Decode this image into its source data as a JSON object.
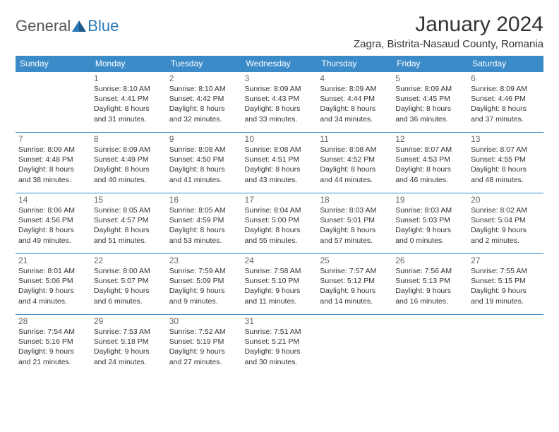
{
  "logo": {
    "general": "General",
    "blue": "Blue"
  },
  "title": "January 2024",
  "location": "Zagra, Bistrita-Nasaud County, Romania",
  "colors": {
    "header_bg": "#3b8bc9",
    "header_text": "#ffffff",
    "border": "#3b8bc9",
    "logo_blue": "#2a7ab8",
    "text": "#333333"
  },
  "day_headers": [
    "Sunday",
    "Monday",
    "Tuesday",
    "Wednesday",
    "Thursday",
    "Friday",
    "Saturday"
  ],
  "weeks": [
    [
      null,
      {
        "n": "1",
        "sr": "Sunrise: 8:10 AM",
        "ss": "Sunset: 4:41 PM",
        "d1": "Daylight: 8 hours",
        "d2": "and 31 minutes."
      },
      {
        "n": "2",
        "sr": "Sunrise: 8:10 AM",
        "ss": "Sunset: 4:42 PM",
        "d1": "Daylight: 8 hours",
        "d2": "and 32 minutes."
      },
      {
        "n": "3",
        "sr": "Sunrise: 8:09 AM",
        "ss": "Sunset: 4:43 PM",
        "d1": "Daylight: 8 hours",
        "d2": "and 33 minutes."
      },
      {
        "n": "4",
        "sr": "Sunrise: 8:09 AM",
        "ss": "Sunset: 4:44 PM",
        "d1": "Daylight: 8 hours",
        "d2": "and 34 minutes."
      },
      {
        "n": "5",
        "sr": "Sunrise: 8:09 AM",
        "ss": "Sunset: 4:45 PM",
        "d1": "Daylight: 8 hours",
        "d2": "and 36 minutes."
      },
      {
        "n": "6",
        "sr": "Sunrise: 8:09 AM",
        "ss": "Sunset: 4:46 PM",
        "d1": "Daylight: 8 hours",
        "d2": "and 37 minutes."
      }
    ],
    [
      {
        "n": "7",
        "sr": "Sunrise: 8:09 AM",
        "ss": "Sunset: 4:48 PM",
        "d1": "Daylight: 8 hours",
        "d2": "and 38 minutes."
      },
      {
        "n": "8",
        "sr": "Sunrise: 8:09 AM",
        "ss": "Sunset: 4:49 PM",
        "d1": "Daylight: 8 hours",
        "d2": "and 40 minutes."
      },
      {
        "n": "9",
        "sr": "Sunrise: 8:08 AM",
        "ss": "Sunset: 4:50 PM",
        "d1": "Daylight: 8 hours",
        "d2": "and 41 minutes."
      },
      {
        "n": "10",
        "sr": "Sunrise: 8:08 AM",
        "ss": "Sunset: 4:51 PM",
        "d1": "Daylight: 8 hours",
        "d2": "and 43 minutes."
      },
      {
        "n": "11",
        "sr": "Sunrise: 8:08 AM",
        "ss": "Sunset: 4:52 PM",
        "d1": "Daylight: 8 hours",
        "d2": "and 44 minutes."
      },
      {
        "n": "12",
        "sr": "Sunrise: 8:07 AM",
        "ss": "Sunset: 4:53 PM",
        "d1": "Daylight: 8 hours",
        "d2": "and 46 minutes."
      },
      {
        "n": "13",
        "sr": "Sunrise: 8:07 AM",
        "ss": "Sunset: 4:55 PM",
        "d1": "Daylight: 8 hours",
        "d2": "and 48 minutes."
      }
    ],
    [
      {
        "n": "14",
        "sr": "Sunrise: 8:06 AM",
        "ss": "Sunset: 4:56 PM",
        "d1": "Daylight: 8 hours",
        "d2": "and 49 minutes."
      },
      {
        "n": "15",
        "sr": "Sunrise: 8:05 AM",
        "ss": "Sunset: 4:57 PM",
        "d1": "Daylight: 8 hours",
        "d2": "and 51 minutes."
      },
      {
        "n": "16",
        "sr": "Sunrise: 8:05 AM",
        "ss": "Sunset: 4:59 PM",
        "d1": "Daylight: 8 hours",
        "d2": "and 53 minutes."
      },
      {
        "n": "17",
        "sr": "Sunrise: 8:04 AM",
        "ss": "Sunset: 5:00 PM",
        "d1": "Daylight: 8 hours",
        "d2": "and 55 minutes."
      },
      {
        "n": "18",
        "sr": "Sunrise: 8:03 AM",
        "ss": "Sunset: 5:01 PM",
        "d1": "Daylight: 8 hours",
        "d2": "and 57 minutes."
      },
      {
        "n": "19",
        "sr": "Sunrise: 8:03 AM",
        "ss": "Sunset: 5:03 PM",
        "d1": "Daylight: 9 hours",
        "d2": "and 0 minutes."
      },
      {
        "n": "20",
        "sr": "Sunrise: 8:02 AM",
        "ss": "Sunset: 5:04 PM",
        "d1": "Daylight: 9 hours",
        "d2": "and 2 minutes."
      }
    ],
    [
      {
        "n": "21",
        "sr": "Sunrise: 8:01 AM",
        "ss": "Sunset: 5:06 PM",
        "d1": "Daylight: 9 hours",
        "d2": "and 4 minutes."
      },
      {
        "n": "22",
        "sr": "Sunrise: 8:00 AM",
        "ss": "Sunset: 5:07 PM",
        "d1": "Daylight: 9 hours",
        "d2": "and 6 minutes."
      },
      {
        "n": "23",
        "sr": "Sunrise: 7:59 AM",
        "ss": "Sunset: 5:09 PM",
        "d1": "Daylight: 9 hours",
        "d2": "and 9 minutes."
      },
      {
        "n": "24",
        "sr": "Sunrise: 7:58 AM",
        "ss": "Sunset: 5:10 PM",
        "d1": "Daylight: 9 hours",
        "d2": "and 11 minutes."
      },
      {
        "n": "25",
        "sr": "Sunrise: 7:57 AM",
        "ss": "Sunset: 5:12 PM",
        "d1": "Daylight: 9 hours",
        "d2": "and 14 minutes."
      },
      {
        "n": "26",
        "sr": "Sunrise: 7:56 AM",
        "ss": "Sunset: 5:13 PM",
        "d1": "Daylight: 9 hours",
        "d2": "and 16 minutes."
      },
      {
        "n": "27",
        "sr": "Sunrise: 7:55 AM",
        "ss": "Sunset: 5:15 PM",
        "d1": "Daylight: 9 hours",
        "d2": "and 19 minutes."
      }
    ],
    [
      {
        "n": "28",
        "sr": "Sunrise: 7:54 AM",
        "ss": "Sunset: 5:16 PM",
        "d1": "Daylight: 9 hours",
        "d2": "and 21 minutes."
      },
      {
        "n": "29",
        "sr": "Sunrise: 7:53 AM",
        "ss": "Sunset: 5:18 PM",
        "d1": "Daylight: 9 hours",
        "d2": "and 24 minutes."
      },
      {
        "n": "30",
        "sr": "Sunrise: 7:52 AM",
        "ss": "Sunset: 5:19 PM",
        "d1": "Daylight: 9 hours",
        "d2": "and 27 minutes."
      },
      {
        "n": "31",
        "sr": "Sunrise: 7:51 AM",
        "ss": "Sunset: 5:21 PM",
        "d1": "Daylight: 9 hours",
        "d2": "and 30 minutes."
      },
      null,
      null,
      null
    ]
  ]
}
